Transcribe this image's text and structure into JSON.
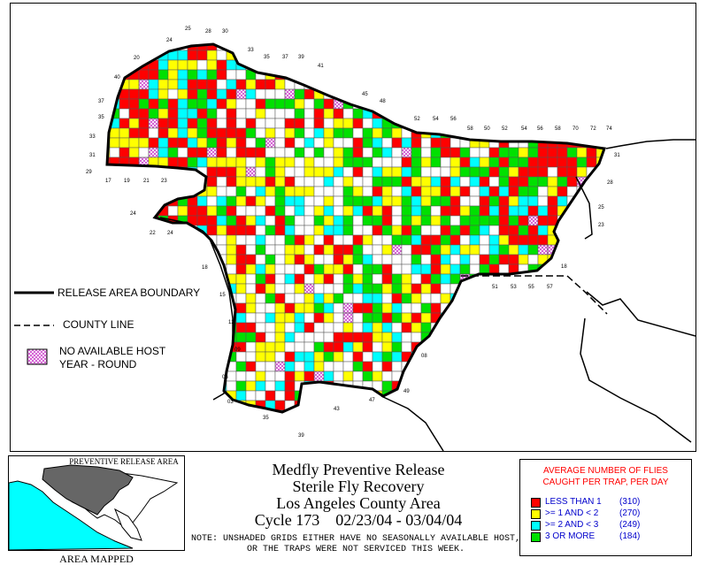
{
  "map": {
    "colors": {
      "red": "#ff0000",
      "yellow": "#ffff00",
      "cyan": "#00ffff",
      "green": "#00e000",
      "white": "#ffffff",
      "nohost": "#cc44cc"
    },
    "grid_labels": [
      "25",
      "28",
      "30",
      "24",
      "33",
      "35",
      "37",
      "39",
      "41",
      "20",
      "40",
      "37",
      "35",
      "33",
      "31",
      "29",
      "17",
      "19",
      "21",
      "23",
      "45",
      "48",
      "52",
      "54",
      "56",
      "58",
      "50",
      "52",
      "54",
      "56",
      "58",
      "70",
      "72",
      "74",
      "31",
      "28",
      "25",
      "23",
      "18",
      "22",
      "24",
      "24",
      "18",
      "15",
      "12",
      "09",
      "06",
      "03",
      "35",
      "39",
      "43",
      "47",
      "49",
      "08",
      "51",
      "53",
      "55",
      "57"
    ]
  },
  "legend_lines": {
    "boundary": "RELEASE AREA BOUNDARY",
    "county": "COUNTY LINE",
    "nohost_line1": "NO AVAILABLE HOST",
    "nohost_line2": "YEAR - ROUND"
  },
  "inset": {
    "title": "PREVENTIVE RELEASE AREA",
    "caption": "AREA MAPPED",
    "colors": {
      "ocean": "#00ffff",
      "release": "#666666"
    }
  },
  "title_block": {
    "line1": "Medfly Preventive Release",
    "line2": "Sterile Fly Recovery",
    "line3": "Los Angeles County Area",
    "cycle": "Cycle 173",
    "dates": "02/23/04 - 03/04/04",
    "note": "NOTE: UNSHADED GRIDS EITHER HAVE NO SEASONALLY AVAILABLE HOST, OR THE TRAPS WERE NOT SERVICED THIS WEEK."
  },
  "key": {
    "title": "AVERAGE NUMBER OF FLIES CAUGHT PER TRAP, PER DAY",
    "items": [
      {
        "label": "LESS THAN 1",
        "count": "(310)",
        "color": "#ff0000"
      },
      {
        "label": ">= 1 AND < 2",
        "count": "(270)",
        "color": "#ffff00"
      },
      {
        "label": ">= 2 AND < 3",
        "count": "(249)",
        "color": "#00ffff"
      },
      {
        "label": "3 OR MORE",
        "count": "(184)",
        "color": "#00e000"
      }
    ]
  }
}
